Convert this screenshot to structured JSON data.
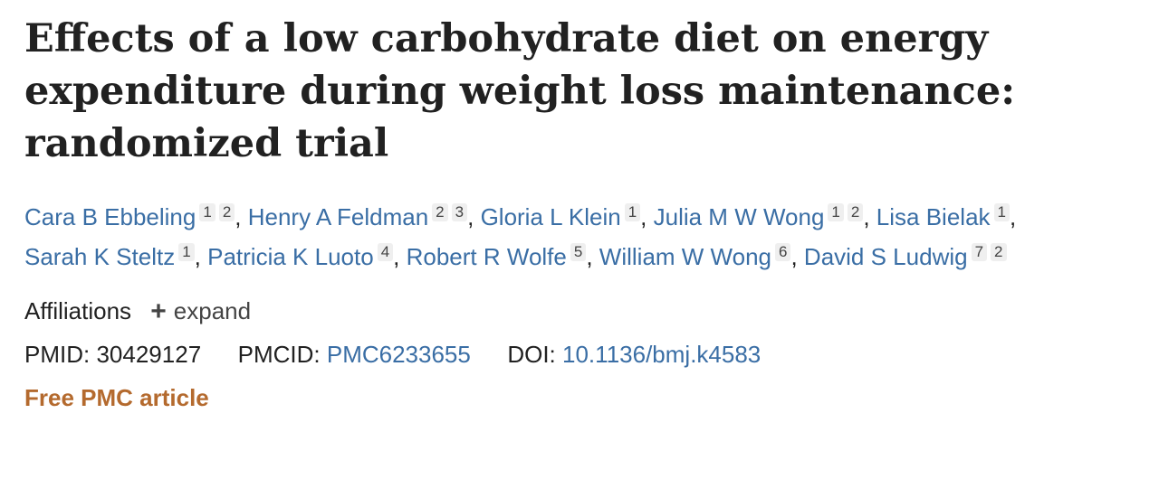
{
  "article": {
    "title": "Effects of a low carbohydrate diet on energy expenditure during weight loss maintenance: randomized trial"
  },
  "authors": [
    {
      "name": "Cara B Ebbeling",
      "refs": [
        "1",
        "2"
      ]
    },
    {
      "name": "Henry A Feldman",
      "refs": [
        "2",
        "3"
      ]
    },
    {
      "name": "Gloria L Klein",
      "refs": [
        "1"
      ]
    },
    {
      "name": "Julia M W Wong",
      "refs": [
        "1",
        "2"
      ]
    },
    {
      "name": "Lisa Bielak",
      "refs": [
        "1"
      ]
    },
    {
      "name": "Sarah K Steltz",
      "refs": [
        "1"
      ]
    },
    {
      "name": "Patricia K Luoto",
      "refs": [
        "4"
      ]
    },
    {
      "name": "Robert R Wolfe",
      "refs": [
        "5"
      ]
    },
    {
      "name": "William W Wong",
      "refs": [
        "6"
      ]
    },
    {
      "name": "David S Ludwig",
      "refs": [
        "7",
        "2"
      ]
    }
  ],
  "affiliations": {
    "label": "Affiliations",
    "expand_icon": "plus-icon",
    "expand_label": "expand"
  },
  "identifiers": {
    "pmid_label": "PMID:",
    "pmid": "30429127",
    "pmcid_label": "PMCID:",
    "pmcid": "PMC6233655",
    "doi_label": "DOI:",
    "doi": "10.1136/bmj.k4583"
  },
  "free_label": "Free PMC article",
  "colors": {
    "link": "#3a6ea5",
    "free": "#b46a2e",
    "text": "#212121"
  }
}
